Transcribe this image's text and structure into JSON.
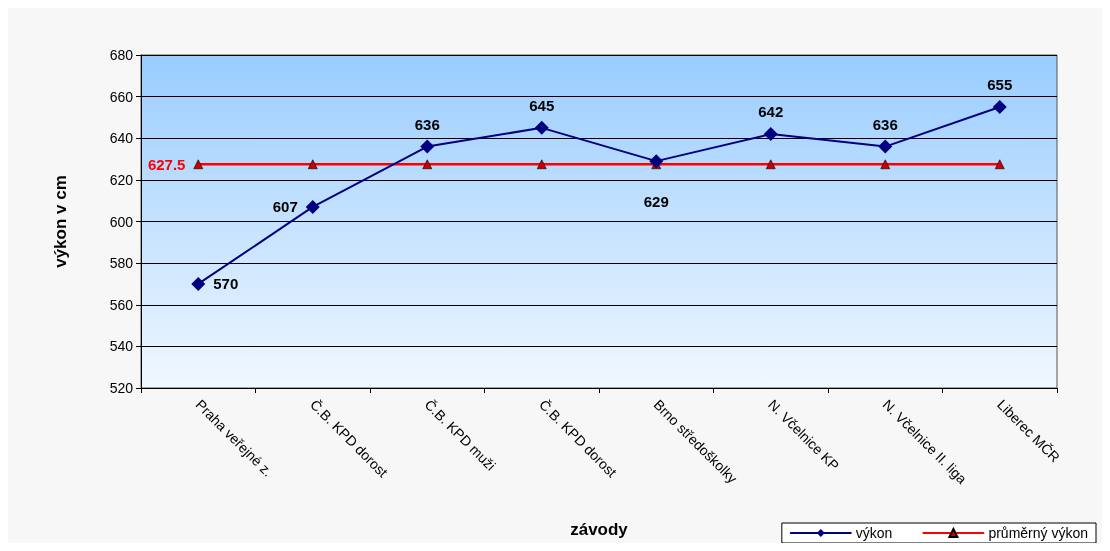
{
  "chart_data": {
    "type": "line",
    "xlabel": "závody",
    "ylabel": "výkon v cm",
    "categories": [
      "Praha veřejné z.",
      "Č.B. KPD dorost",
      "Č.B. KPD muži",
      "Č.B. KPD dorost",
      "Brno středoškolky",
      "N. Včelnice KP",
      "N. Včelnice II. liga",
      "Liberec MČR"
    ],
    "series": [
      {
        "name": "výkon",
        "color": "#000080",
        "marker": "diamond",
        "values": [
          570,
          607,
          636,
          645,
          629,
          642,
          636,
          655
        ],
        "value_labels": [
          "570",
          "607",
          "636",
          "645",
          "629",
          "642",
          "636",
          "655"
        ]
      },
      {
        "name": "průměrný výkon",
        "color": "#ff0000",
        "marker": "triangle",
        "values": [
          627.5,
          627.5,
          627.5,
          627.5,
          627.5,
          627.5,
          627.5,
          627.5
        ],
        "value_labels": [
          "627.5",
          null,
          null,
          null,
          null,
          null,
          null,
          null
        ]
      }
    ],
    "ylim": [
      520,
      680
    ],
    "yticks": [
      520,
      540,
      560,
      580,
      600,
      620,
      640,
      660,
      680
    ],
    "grid": "y",
    "legend": "bottom right"
  }
}
